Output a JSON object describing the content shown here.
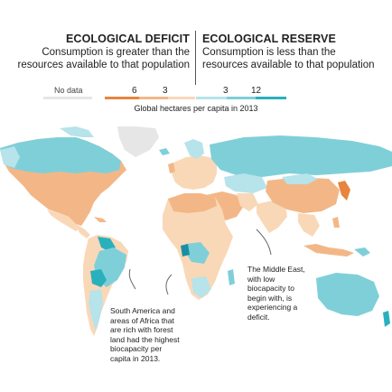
{
  "header": {
    "deficit": {
      "title": "ECOLOGICAL DEFICIT",
      "desc_line1": "Consumption is greater than the",
      "desc_line2": "resources available to that population"
    },
    "reserve": {
      "title": "ECOLOGICAL RESERVE",
      "desc_line1": "Consumption is less than the",
      "desc_line2": "resources available to that population"
    }
  },
  "legend": {
    "no_data_label": "No data",
    "ticks": [
      "6",
      "3",
      "3",
      "12"
    ],
    "caption": "Global hectares per capita in 2013",
    "colors": {
      "no_data": "#e6e6e6",
      "deficit_strong": "#e8843e",
      "deficit_mid": "#f3b787",
      "deficit_light": "#f9d8b8",
      "reserve_light": "#b7e3ea",
      "reserve_mid": "#7fcfd9",
      "reserve_strong": "#2ab0bd",
      "reserve_deep": "#1a8fa3",
      "ocean": "#ffffff"
    }
  },
  "annotations": {
    "south_america": [
      "South America and",
      "areas of Africa that",
      "are rich with forest",
      "land had the highest",
      "biocapacity per",
      "capita in 2013."
    ],
    "middle_east": [
      "The Middle East,",
      "with low",
      "biocapacity to",
      "begin with, is",
      "experiencing a",
      "deficit."
    ]
  }
}
